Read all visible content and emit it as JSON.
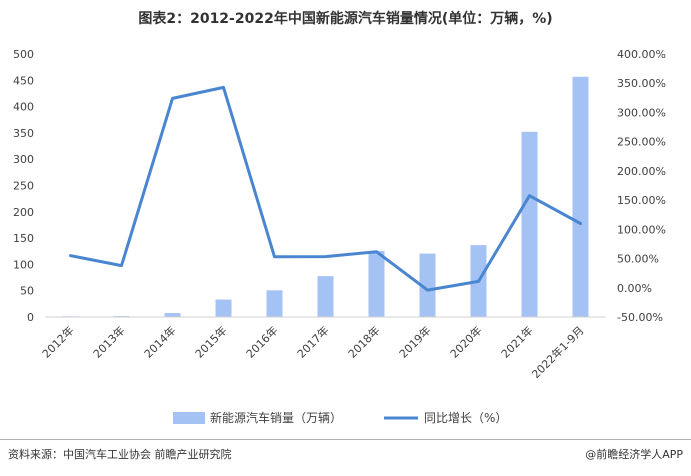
{
  "chart_data": {
    "type": "bar",
    "title": "图表2：2012-2022年中国新能源汽车销量情况(单位：万辆，%)",
    "categories": [
      "2012年",
      "2013年",
      "2014年",
      "2015年",
      "2016年",
      "2017年",
      "2018年",
      "2019年",
      "2020年",
      "2021年",
      "2022年1-9月"
    ],
    "series": [
      {
        "name": "新能源汽车销量（万辆）",
        "type": "bar",
        "axis": "left",
        "color": "#a4c2f4",
        "values": [
          1.3,
          1.8,
          7.5,
          33.1,
          50.7,
          77.7,
          125.6,
          120.6,
          136.7,
          352.1,
          456.7
        ]
      },
      {
        "name": "同比增长（%）",
        "type": "line",
        "axis": "right",
        "color": "#4a86d0",
        "values": [
          55.0,
          37.9,
          324.0,
          342.9,
          53.0,
          53.3,
          61.7,
          -4.0,
          10.9,
          157.5,
          110.0
        ]
      }
    ],
    "y_left": {
      "min": 0,
      "max": 500,
      "step": 50,
      "ticks": [
        "0",
        "50",
        "100",
        "150",
        "200",
        "250",
        "300",
        "350",
        "400",
        "450",
        "500"
      ]
    },
    "y_right": {
      "min": -50,
      "max": 400,
      "step": 50,
      "ticks": [
        "-50.00%",
        "0.00%",
        "50.00%",
        "100.00%",
        "150.00%",
        "200.00%",
        "250.00%",
        "300.00%",
        "350.00%",
        "400.00%"
      ]
    },
    "grid": false,
    "legend": {
      "position": "bottom"
    }
  },
  "footer": {
    "source": "资料来源：中国汽车工业协会 前瞻产业研究院",
    "brand": "@前瞻经济学人APP"
  }
}
